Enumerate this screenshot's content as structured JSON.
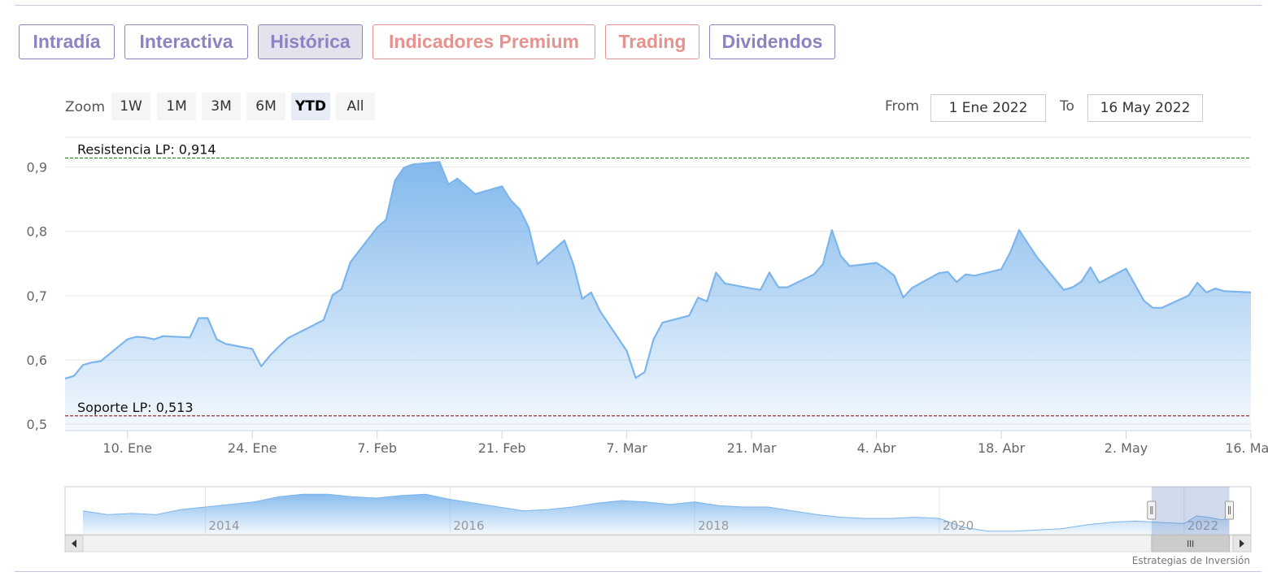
{
  "tabs": [
    {
      "label": "Intradía",
      "style": "purple",
      "active": false
    },
    {
      "label": "Interactiva",
      "style": "purple",
      "active": false
    },
    {
      "label": "Histórica",
      "style": "purple",
      "active": true
    },
    {
      "label": "Indicadores Premium",
      "style": "red",
      "active": false
    },
    {
      "label": "Trading",
      "style": "red",
      "active": false
    },
    {
      "label": "Dividendos",
      "style": "purple",
      "active": false
    }
  ],
  "zoom": {
    "label": "Zoom",
    "buttons": [
      "1W",
      "1M",
      "3M",
      "6M",
      "YTD",
      "All"
    ],
    "active": "YTD"
  },
  "range": {
    "from_label": "From",
    "from_value": "1 Ene 2022",
    "to_label": "To",
    "to_value": "16 May 2022"
  },
  "credit": "Estrategias de Inversión",
  "chart_data": {
    "type": "area",
    "series_color": "#7cb5ec",
    "x_start": "2022-01-03",
    "x_end": "2022-05-16",
    "x_ticks": [
      {
        "date": "2022-01-10",
        "label": "10. Ene"
      },
      {
        "date": "2022-01-24",
        "label": "24. Ene"
      },
      {
        "date": "2022-02-07",
        "label": "7. Feb"
      },
      {
        "date": "2022-02-21",
        "label": "21. Feb"
      },
      {
        "date": "2022-03-07",
        "label": "7. Mar"
      },
      {
        "date": "2022-03-21",
        "label": "21. Mar"
      },
      {
        "date": "2022-04-04",
        "label": "4. Abr"
      },
      {
        "date": "2022-04-18",
        "label": "18. Abr"
      },
      {
        "date": "2022-05-02",
        "label": "2. May"
      },
      {
        "date": "2022-05-16",
        "label": "16. May"
      }
    ],
    "y_ticks": [
      0.5,
      0.6,
      0.7,
      0.8,
      0.9
    ],
    "y_tick_labels": [
      "0,5",
      "0,6",
      "0,7",
      "0,8",
      "0,9"
    ],
    "ylim": [
      0.49,
      0.945
    ],
    "grid": true,
    "plot_lines": [
      {
        "label": "Resistencia LP: 0,914",
        "value": 0.914,
        "color": "#2e8b2e"
      },
      {
        "label": "Soporte LP: 0,513",
        "value": 0.513,
        "color": "#8b1a1a"
      }
    ],
    "points": [
      [
        "2022-01-03",
        0.571
      ],
      [
        "2022-01-04",
        0.575
      ],
      [
        "2022-01-05",
        0.592
      ],
      [
        "2022-01-06",
        0.596
      ],
      [
        "2022-01-07",
        0.598
      ],
      [
        "2022-01-10",
        0.632
      ],
      [
        "2022-01-11",
        0.636
      ],
      [
        "2022-01-12",
        0.635
      ],
      [
        "2022-01-13",
        0.632
      ],
      [
        "2022-01-14",
        0.637
      ],
      [
        "2022-01-17",
        0.635
      ],
      [
        "2022-01-18",
        0.665
      ],
      [
        "2022-01-19",
        0.665
      ],
      [
        "2022-01-20",
        0.632
      ],
      [
        "2022-01-21",
        0.625
      ],
      [
        "2022-01-24",
        0.617
      ],
      [
        "2022-01-25",
        0.59
      ],
      [
        "2022-01-26",
        0.607
      ],
      [
        "2022-01-27",
        0.621
      ],
      [
        "2022-01-28",
        0.634
      ],
      [
        "2022-01-31",
        0.655
      ],
      [
        "2022-02-01",
        0.662
      ],
      [
        "2022-02-02",
        0.701
      ],
      [
        "2022-02-03",
        0.71
      ],
      [
        "2022-02-04",
        0.752
      ],
      [
        "2022-02-07",
        0.806
      ],
      [
        "2022-02-08",
        0.818
      ],
      [
        "2022-02-09",
        0.879
      ],
      [
        "2022-02-10",
        0.899
      ],
      [
        "2022-02-11",
        0.904
      ],
      [
        "2022-02-14",
        0.908
      ],
      [
        "2022-02-15",
        0.873
      ],
      [
        "2022-02-16",
        0.882
      ],
      [
        "2022-02-17",
        0.87
      ],
      [
        "2022-02-18",
        0.858
      ],
      [
        "2022-02-21",
        0.87
      ],
      [
        "2022-02-22",
        0.848
      ],
      [
        "2022-02-23",
        0.834
      ],
      [
        "2022-02-24",
        0.806
      ],
      [
        "2022-02-25",
        0.749
      ],
      [
        "2022-02-28",
        0.786
      ],
      [
        "2022-03-01",
        0.749
      ],
      [
        "2022-03-02",
        0.695
      ],
      [
        "2022-03-03",
        0.705
      ],
      [
        "2022-03-04",
        0.676
      ],
      [
        "2022-03-07",
        0.614
      ],
      [
        "2022-03-08",
        0.572
      ],
      [
        "2022-03-09",
        0.581
      ],
      [
        "2022-03-10",
        0.632
      ],
      [
        "2022-03-11",
        0.658
      ],
      [
        "2022-03-14",
        0.669
      ],
      [
        "2022-03-15",
        0.697
      ],
      [
        "2022-03-16",
        0.691
      ],
      [
        "2022-03-17",
        0.736
      ],
      [
        "2022-03-18",
        0.719
      ],
      [
        "2022-03-21",
        0.711
      ],
      [
        "2022-03-22",
        0.709
      ],
      [
        "2022-03-23",
        0.736
      ],
      [
        "2022-03-24",
        0.713
      ],
      [
        "2022-03-25",
        0.713
      ],
      [
        "2022-03-28",
        0.733
      ],
      [
        "2022-03-29",
        0.749
      ],
      [
        "2022-03-30",
        0.802
      ],
      [
        "2022-03-31",
        0.762
      ],
      [
        "2022-04-01",
        0.746
      ],
      [
        "2022-04-04",
        0.751
      ],
      [
        "2022-04-05",
        0.742
      ],
      [
        "2022-04-06",
        0.731
      ],
      [
        "2022-04-07",
        0.697
      ],
      [
        "2022-04-08",
        0.712
      ],
      [
        "2022-04-11",
        0.735
      ],
      [
        "2022-04-12",
        0.737
      ],
      [
        "2022-04-13",
        0.721
      ],
      [
        "2022-04-14",
        0.733
      ],
      [
        "2022-04-15",
        0.731
      ],
      [
        "2022-04-18",
        0.741
      ],
      [
        "2022-04-19",
        0.767
      ],
      [
        "2022-04-20",
        0.802
      ],
      [
        "2022-04-21",
        0.781
      ],
      [
        "2022-04-22",
        0.76
      ],
      [
        "2022-04-25",
        0.709
      ],
      [
        "2022-04-26",
        0.713
      ],
      [
        "2022-04-27",
        0.722
      ],
      [
        "2022-04-28",
        0.744
      ],
      [
        "2022-04-29",
        0.72
      ],
      [
        "2022-05-02",
        0.742
      ],
      [
        "2022-05-03",
        0.717
      ],
      [
        "2022-05-04",
        0.692
      ],
      [
        "2022-05-05",
        0.681
      ],
      [
        "2022-05-06",
        0.681
      ],
      [
        "2022-05-09",
        0.7
      ],
      [
        "2022-05-10",
        0.72
      ],
      [
        "2022-05-11",
        0.705
      ],
      [
        "2022-05-12",
        0.711
      ],
      [
        "2022-05-13",
        0.707
      ],
      [
        "2022-05-16",
        0.705
      ]
    ],
    "navigator": {
      "year_labels": [
        "2014",
        "2016",
        "2018",
        "2020",
        "2022"
      ],
      "x_start": 2013.0,
      "x_end": 2022.4,
      "year_marks": [
        2014,
        2016,
        2018,
        2020,
        2022
      ],
      "selected_range": [
        2022.0,
        2022.37
      ],
      "series": [
        [
          2013.0,
          0.63
        ],
        [
          2013.2,
          0.6
        ],
        [
          2013.4,
          0.61
        ],
        [
          2013.6,
          0.6
        ],
        [
          2013.8,
          0.64
        ],
        [
          2014.0,
          0.66
        ],
        [
          2014.2,
          0.68
        ],
        [
          2014.4,
          0.7
        ],
        [
          2014.6,
          0.74
        ],
        [
          2014.8,
          0.76
        ],
        [
          2015.0,
          0.76
        ],
        [
          2015.2,
          0.74
        ],
        [
          2015.4,
          0.73
        ],
        [
          2015.6,
          0.75
        ],
        [
          2015.8,
          0.76
        ],
        [
          2016.0,
          0.72
        ],
        [
          2016.2,
          0.69
        ],
        [
          2016.4,
          0.66
        ],
        [
          2016.6,
          0.63
        ],
        [
          2016.8,
          0.64
        ],
        [
          2017.0,
          0.66
        ],
        [
          2017.2,
          0.69
        ],
        [
          2017.4,
          0.71
        ],
        [
          2017.6,
          0.7
        ],
        [
          2017.8,
          0.68
        ],
        [
          2018.0,
          0.7
        ],
        [
          2018.2,
          0.67
        ],
        [
          2018.4,
          0.66
        ],
        [
          2018.6,
          0.66
        ],
        [
          2018.8,
          0.63
        ],
        [
          2019.0,
          0.6
        ],
        [
          2019.2,
          0.58
        ],
        [
          2019.4,
          0.57
        ],
        [
          2019.6,
          0.57
        ],
        [
          2019.8,
          0.58
        ],
        [
          2020.0,
          0.57
        ],
        [
          2020.2,
          0.5
        ],
        [
          2020.4,
          0.47
        ],
        [
          2020.6,
          0.47
        ],
        [
          2020.8,
          0.48
        ],
        [
          2021.0,
          0.49
        ],
        [
          2021.2,
          0.52
        ],
        [
          2021.4,
          0.54
        ],
        [
          2021.6,
          0.55
        ],
        [
          2021.8,
          0.54
        ],
        [
          2022.0,
          0.53
        ],
        [
          2022.1,
          0.59
        ],
        [
          2022.2,
          0.58
        ],
        [
          2022.3,
          0.56
        ],
        [
          2022.37,
          0.57
        ]
      ]
    }
  }
}
